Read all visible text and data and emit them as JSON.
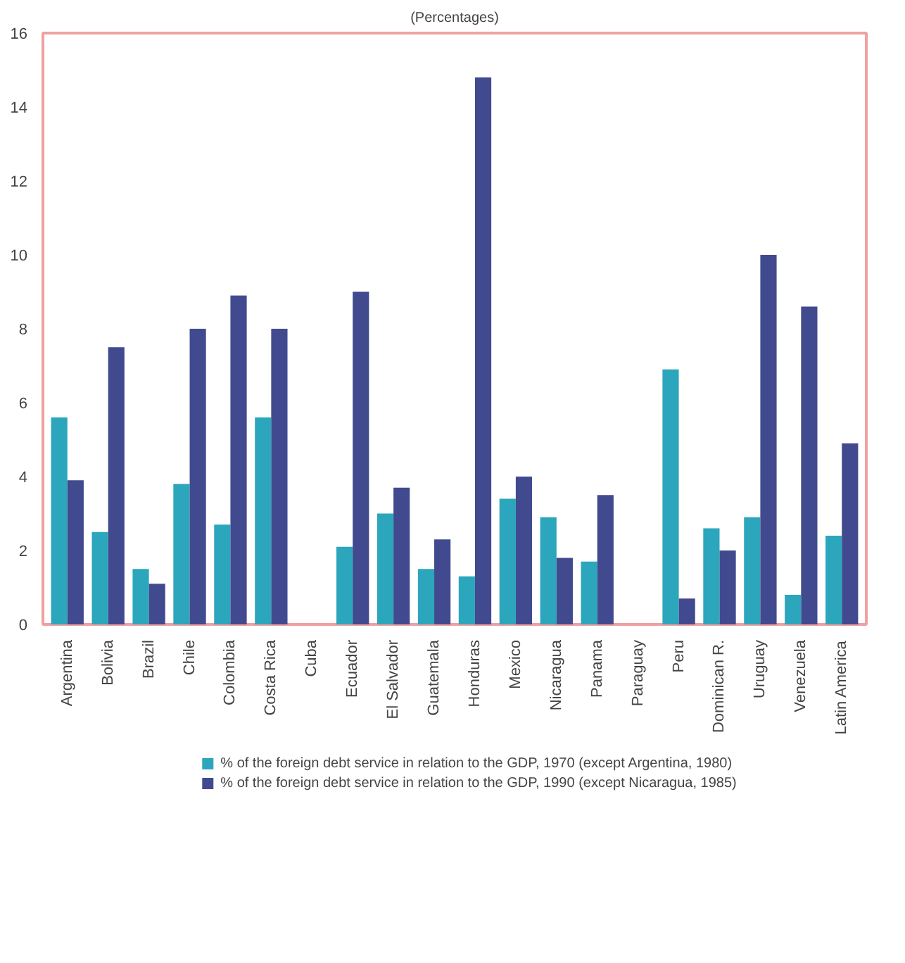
{
  "chart_data": {
    "type": "bar",
    "title": "(Percentages)",
    "categories": [
      "Argentina",
      "Bolivia",
      "Brazil",
      "Chile",
      "Colombia",
      "Costa Rica",
      "Cuba",
      "Ecuador",
      "El Salvador",
      "Guatemala",
      "Honduras",
      "Mexico",
      "Nicaragua",
      "Panama",
      "Paraguay",
      "Peru",
      "Dominican R.",
      "Uruguay",
      "Venezuela",
      "Latin America"
    ],
    "series": [
      {
        "name": "% of the foreign debt service in relation to the GDP, 1970 (except Argentina, 1980)",
        "color": "#2ba6bc",
        "values": [
          5.6,
          2.5,
          1.5,
          3.8,
          2.7,
          5.6,
          null,
          2.1,
          3.0,
          1.5,
          1.3,
          3.4,
          2.9,
          1.7,
          null,
          6.9,
          2.6,
          2.9,
          0.8,
          2.4
        ]
      },
      {
        "name": "% of the foreign debt service in relation to the GDP, 1990 (except Nicaragua, 1985)",
        "color": "#414a8e",
        "values": [
          3.9,
          7.5,
          1.1,
          8.0,
          8.9,
          8.0,
          null,
          9.0,
          3.7,
          2.3,
          14.8,
          4.0,
          1.8,
          3.5,
          null,
          0.7,
          2.0,
          10.0,
          8.6,
          4.9
        ]
      }
    ],
    "ylim": [
      0,
      16
    ],
    "yticks": [
      0,
      2,
      4,
      6,
      8,
      10,
      12,
      14,
      16
    ],
    "grid": false,
    "legend": "bottom"
  }
}
